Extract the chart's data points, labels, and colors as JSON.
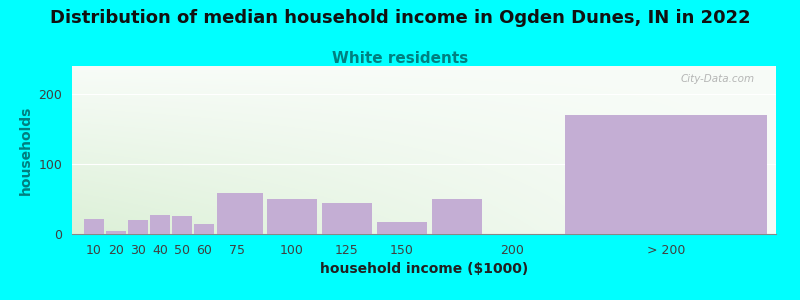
{
  "title": "Distribution of median household income in Ogden Dunes, IN in 2022",
  "subtitle": "White residents",
  "xlabel": "household income ($1000)",
  "ylabel": "households",
  "background_color": "#00FFFF",
  "bar_color": "#C4AED4",
  "categories": [
    "10",
    "20",
    "30",
    "40",
    "50",
    "60",
    "75",
    "100",
    "125",
    "150",
    "200",
    "> 200"
  ],
  "bar_lefts": [
    5,
    15,
    25,
    35,
    45,
    55,
    65,
    87.5,
    112.5,
    137.5,
    162.5,
    220
  ],
  "bar_widths": [
    10,
    10,
    10,
    10,
    10,
    10,
    22.5,
    25,
    25,
    25,
    25,
    100
  ],
  "values": [
    22,
    5,
    20,
    27,
    26,
    14,
    58,
    50,
    45,
    17,
    50,
    170
  ],
  "xtick_positions": [
    10,
    20,
    30,
    40,
    50,
    60,
    75,
    100,
    125,
    150,
    200,
    270
  ],
  "xtick_labels": [
    "10",
    "20",
    "30",
    "40",
    "50",
    "60",
    "75",
    "100",
    "125",
    "150",
    "200",
    "> 200"
  ],
  "xlim": [
    0,
    320
  ],
  "ylim": [
    0,
    240
  ],
  "yticks": [
    0,
    100,
    200
  ],
  "title_fontsize": 13,
  "subtitle_fontsize": 11,
  "subtitle_color": "#008080",
  "axis_label_fontsize": 10,
  "tick_fontsize": 9,
  "figsize": [
    8.0,
    3.0
  ],
  "dpi": 100
}
